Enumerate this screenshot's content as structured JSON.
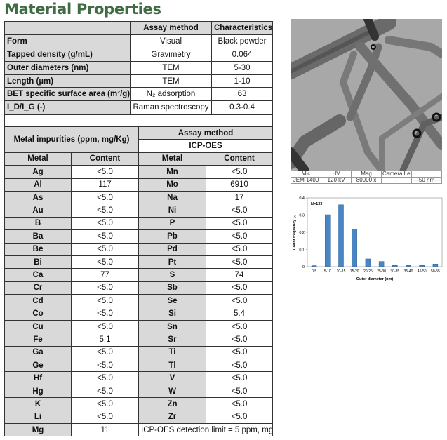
{
  "title": "Material Properties",
  "properties": {
    "headers": [
      "",
      "Assay method",
      "Characteristics"
    ],
    "rows": [
      {
        "label": "Form",
        "method": "Visual",
        "value": "Black powder"
      },
      {
        "label": "Tapped density (g/mL)",
        "method": "Gravimetry",
        "value": "0.064"
      },
      {
        "label": "Outer diameters (nm)",
        "method": "TEM",
        "value": "5-30"
      },
      {
        "label": "Length (µm)",
        "method": "TEM",
        "value": "1-10"
      },
      {
        "label": "BET specific surface area (m²/g)",
        "method": "N₂ adsorption",
        "value": "63"
      },
      {
        "label": "I_D/I_G (-)",
        "method": "Raman spectroscopy",
        "value": "0.3-0.4"
      }
    ]
  },
  "impurities": {
    "title": "Metal impurities (ppm, mg/Kg)",
    "assay_label": "Assay method",
    "assay_value": "ICP-OES",
    "col_metal": "Metal",
    "col_content": "Content",
    "left": [
      [
        "Ag",
        "<5.0"
      ],
      [
        "Al",
        "117"
      ],
      [
        "As",
        "<5.0"
      ],
      [
        "Au",
        "<5.0"
      ],
      [
        "B",
        "<5.0"
      ],
      [
        "Ba",
        "<5.0"
      ],
      [
        "Be",
        "<5.0"
      ],
      [
        "Bi",
        "<5.0"
      ],
      [
        "Ca",
        "77"
      ],
      [
        "Cr",
        "<5.0"
      ],
      [
        "Cd",
        "<5.0"
      ],
      [
        "Co",
        "<5.0"
      ],
      [
        "Cu",
        "<5.0"
      ],
      [
        "Fe",
        "5.1"
      ],
      [
        "Ga",
        "<5.0"
      ],
      [
        "Ge",
        "<5.0"
      ],
      [
        "Hf",
        "<5.0"
      ],
      [
        "Hg",
        "<5.0"
      ],
      [
        "K",
        "<5.0"
      ],
      [
        "Li",
        "<5.0"
      ],
      [
        "Mg",
        "11"
      ]
    ],
    "right": [
      [
        "Mn",
        "<5.0"
      ],
      [
        "Mo",
        "6910"
      ],
      [
        "Na",
        "17"
      ],
      [
        "Ni",
        "<5.0"
      ],
      [
        "P",
        "<5.0"
      ],
      [
        "Pb",
        "<5.0"
      ],
      [
        "Pd",
        "<5.0"
      ],
      [
        "Pt",
        "<5.0"
      ],
      [
        "S",
        "74"
      ],
      [
        "Sb",
        "<5.0"
      ],
      [
        "Se",
        "<5.0"
      ],
      [
        "Si",
        "5.4"
      ],
      [
        "Sn",
        "<5.0"
      ],
      [
        "Sr",
        "<5.0"
      ],
      [
        "Ti",
        "<5.0"
      ],
      [
        "Tl",
        "<5.0"
      ],
      [
        "V",
        "<5.0"
      ],
      [
        "W",
        "<5.0"
      ],
      [
        "Zn",
        "<5.0"
      ],
      [
        "Zr",
        "<5.0"
      ]
    ],
    "note": "ICP-OES detection limit = 5 ppm, mg/Kg"
  },
  "tem_caption": {
    "headers": [
      "Mic",
      "HV",
      "Mag",
      "Camera Length",
      ""
    ],
    "values": [
      "JEM-1400",
      "120 kV",
      "80000 x",
      "-",
      "—50 nm—"
    ]
  },
  "chart_data": {
    "type": "bar",
    "annotation": "N=133",
    "xlabel": "Outer diameter (nm)",
    "ylabel": "Count frequency (-)",
    "categories": [
      "0-5",
      "5-10",
      "10-15",
      "15-20",
      "20-25",
      "25-30",
      "30-35",
      "35-40",
      "45-50",
      "50-55"
    ],
    "values": [
      0.006,
      0.302,
      0.36,
      0.218,
      0.045,
      0.03,
      0.007,
      0.007,
      0.007,
      0.015
    ],
    "ylim": [
      0,
      0.4
    ],
    "yticks": [
      "0",
      "0.1",
      "0.2",
      "0.3",
      "0.4"
    ],
    "bar_color": "#4a86c5",
    "grid": false
  }
}
